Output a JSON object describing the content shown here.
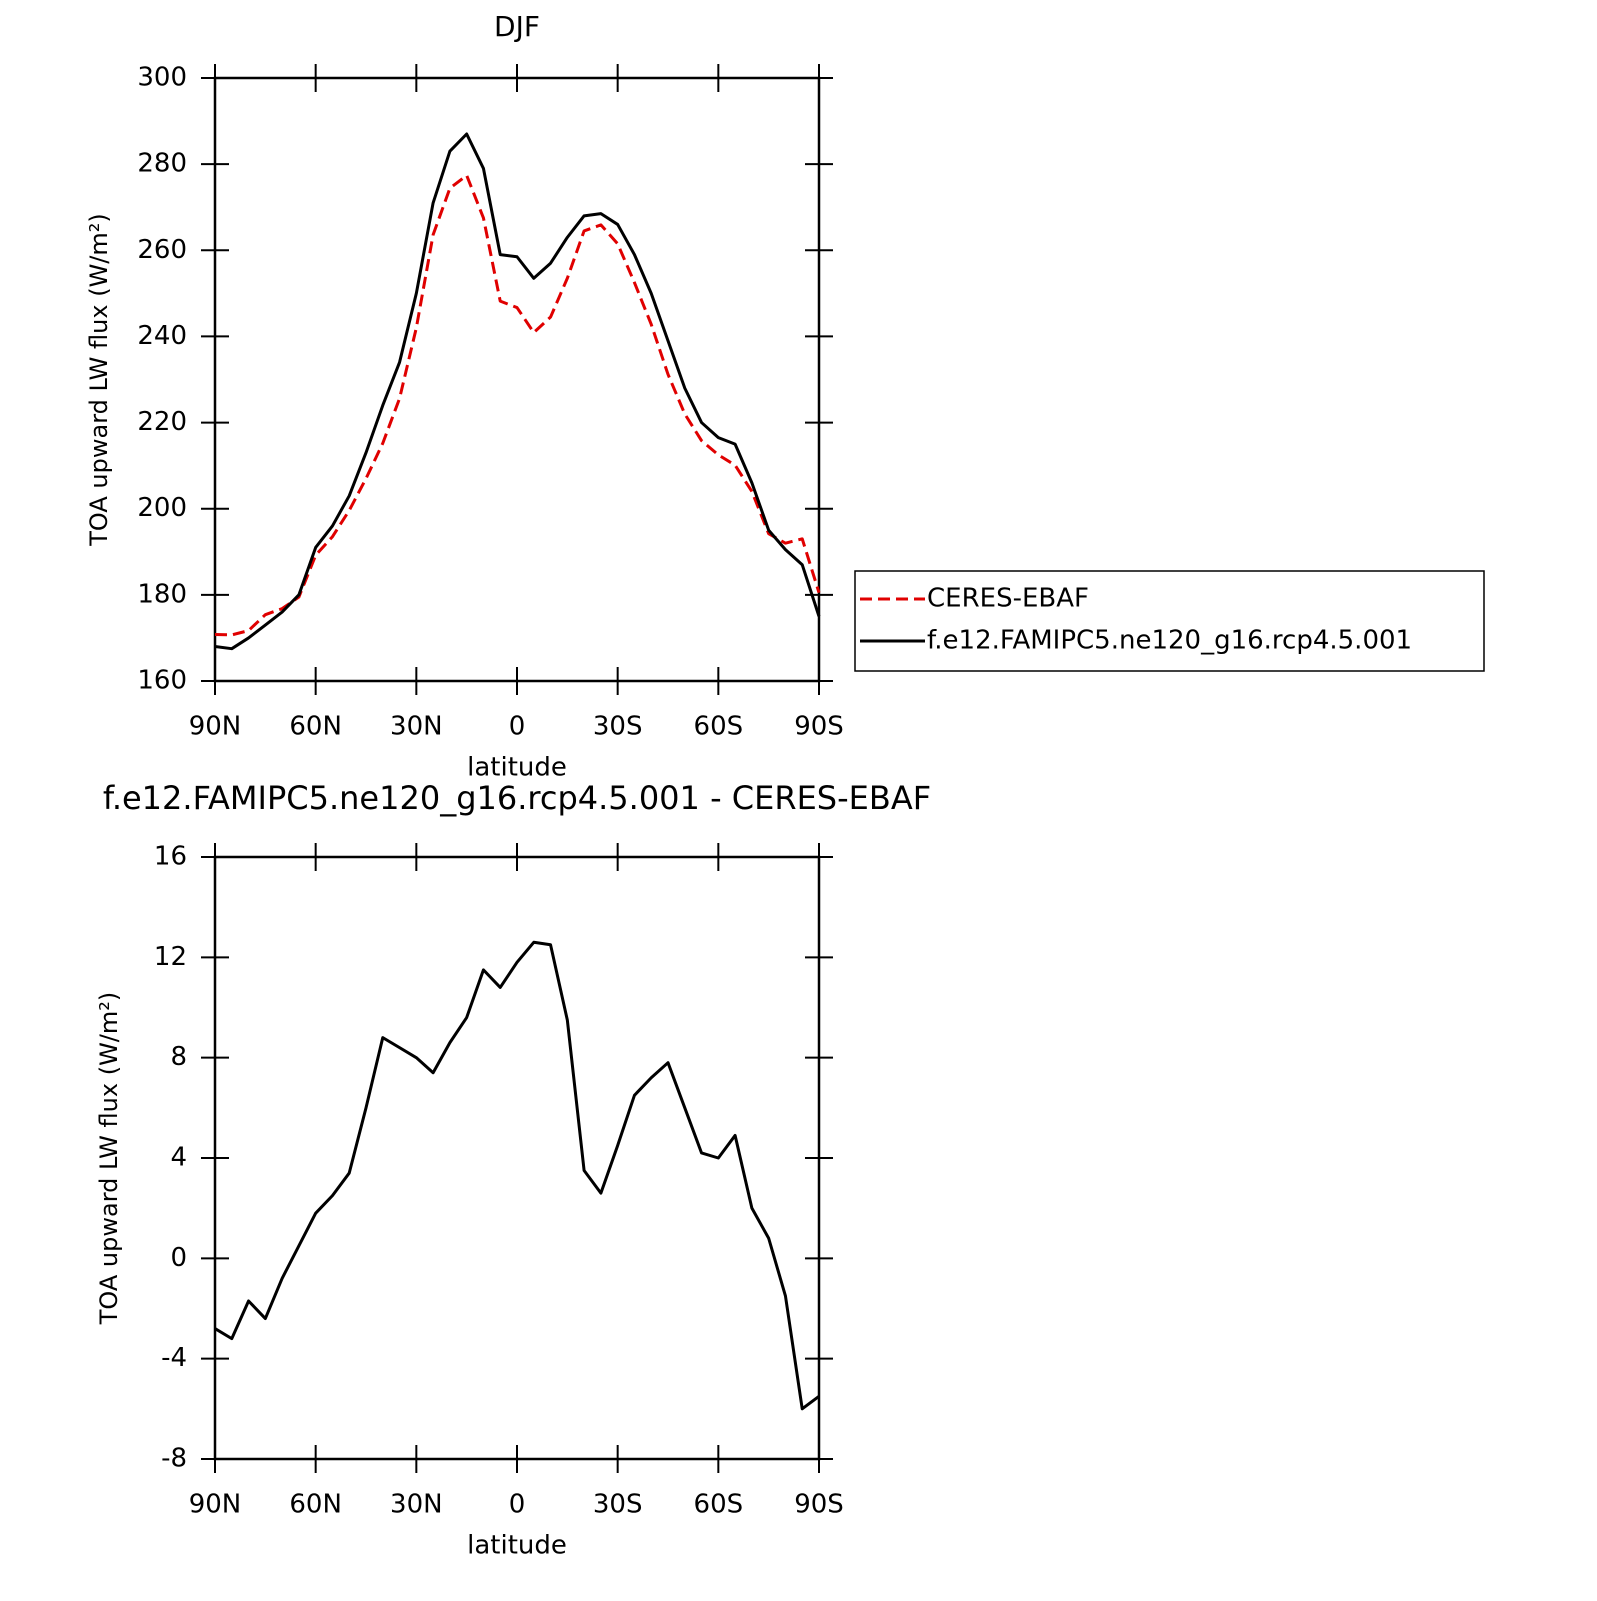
{
  "chart_data": [
    {
      "type": "line",
      "title": "DJF",
      "ylabel": "TOA upward LW flux (W/m²)",
      "xlabel": "latitude",
      "x": [
        90,
        85,
        80,
        75,
        70,
        65,
        60,
        55,
        50,
        45,
        40,
        35,
        30,
        25,
        20,
        15,
        10,
        5,
        0,
        -5,
        -10,
        -15,
        -20,
        -25,
        -30,
        -35,
        -40,
        -45,
        -50,
        -55,
        -60,
        -65,
        -70,
        -75,
        -80,
        -85,
        -90
      ],
      "xlim": [
        90,
        -90
      ],
      "xticks": [
        {
          "value": 90,
          "label": "90N"
        },
        {
          "value": 60,
          "label": "60N"
        },
        {
          "value": 30,
          "label": "30N"
        },
        0,
        {
          "value": -30,
          "label": "30S"
        },
        {
          "value": -60,
          "label": "60S"
        },
        {
          "value": -90,
          "label": "90S"
        }
      ],
      "ylim": [
        160,
        300
      ],
      "yticks": [
        160,
        180,
        200,
        220,
        240,
        260,
        280,
        300
      ],
      "legend": "right",
      "series": [
        {
          "name": "CERES-EBAF",
          "color": "#e00000",
          "dashed": true,
          "values": [
            170.8,
            170.7,
            171.7,
            175.4,
            176.8,
            179.5,
            189.2,
            193.5,
            199.6,
            207,
            215.2,
            225.6,
            242,
            263.6,
            274.4,
            277.4,
            267.5,
            248.2,
            246.7,
            240.9,
            244.5,
            253.5,
            264.5,
            265.9,
            261.5,
            252.5,
            242.8,
            231.2,
            222,
            215.8,
            212.5,
            210.1,
            204,
            194.2,
            192,
            193,
            180.5
          ]
        },
        {
          "name": "f.e12.FAMIPC5.ne120_g16.rcp4.5.001",
          "color": "#000000",
          "dashed": false,
          "values": [
            168,
            167.5,
            170,
            173,
            176,
            180,
            191,
            196,
            203,
            213,
            224,
            234,
            250,
            271,
            283,
            287,
            279,
            259,
            258.5,
            253.5,
            257,
            263,
            268,
            268.5,
            266,
            259,
            250,
            239,
            228,
            220,
            216.5,
            215,
            206,
            195,
            190.5,
            187,
            175
          ]
        }
      ]
    },
    {
      "type": "line",
      "title": "f.e12.FAMIPC5.ne120_g16.rcp4.5.001 - CERES-EBAF",
      "ylabel": "TOA upward LW flux (W/m²)",
      "xlabel": "latitude",
      "x": [
        90,
        85,
        80,
        75,
        70,
        65,
        60,
        55,
        50,
        45,
        40,
        35,
        30,
        25,
        20,
        15,
        10,
        5,
        0,
        -5,
        -10,
        -15,
        -20,
        -25,
        -30,
        -35,
        -40,
        -45,
        -50,
        -55,
        -60,
        -65,
        -70,
        -75,
        -80,
        -85,
        -90
      ],
      "xlim": [
        90,
        -90
      ],
      "xticks": [
        {
          "value": 90,
          "label": "90N"
        },
        {
          "value": 60,
          "label": "60N"
        },
        {
          "value": 30,
          "label": "30N"
        },
        0,
        {
          "value": -30,
          "label": "30S"
        },
        {
          "value": -60,
          "label": "60S"
        },
        {
          "value": -90,
          "label": "90S"
        }
      ],
      "ylim": [
        -8,
        16
      ],
      "yticks": [
        -8,
        -4,
        0,
        4,
        8,
        12,
        16
      ],
      "color": "#000000",
      "values": [
        -2.8,
        -3.2,
        -1.7,
        -2.4,
        -0.8,
        0.5,
        1.8,
        2.5,
        3.4,
        6.0,
        8.8,
        8.4,
        8.0,
        7.4,
        8.6,
        9.6,
        11.5,
        10.8,
        11.8,
        12.6,
        12.5,
        9.5,
        3.5,
        2.6,
        4.5,
        6.5,
        7.2,
        7.8,
        6.0,
        4.2,
        4.0,
        4.9,
        2.0,
        0.8,
        -1.5,
        -6.0,
        -5.5
      ]
    }
  ]
}
